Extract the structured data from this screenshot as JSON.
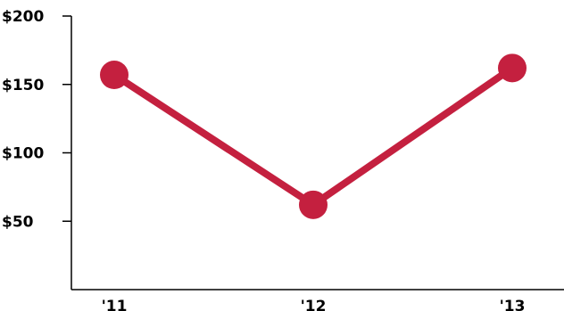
{
  "chart_data": {
    "type": "line",
    "title": "",
    "xlabel": "",
    "ylabel": "",
    "categories": [
      "'11",
      "'12",
      "'13"
    ],
    "series": [
      {
        "values": [
          157,
          62,
          162
        ]
      }
    ],
    "ylim": [
      0,
      200
    ],
    "y_ticks": [
      50,
      100,
      150,
      200
    ],
    "y_tick_labels": [
      "$50",
      "$100",
      "$150",
      "$200"
    ],
    "grid": false,
    "legend": "none",
    "colors": {
      "line": "#c4203f",
      "axis": "#000000",
      "text": "#000000"
    }
  }
}
